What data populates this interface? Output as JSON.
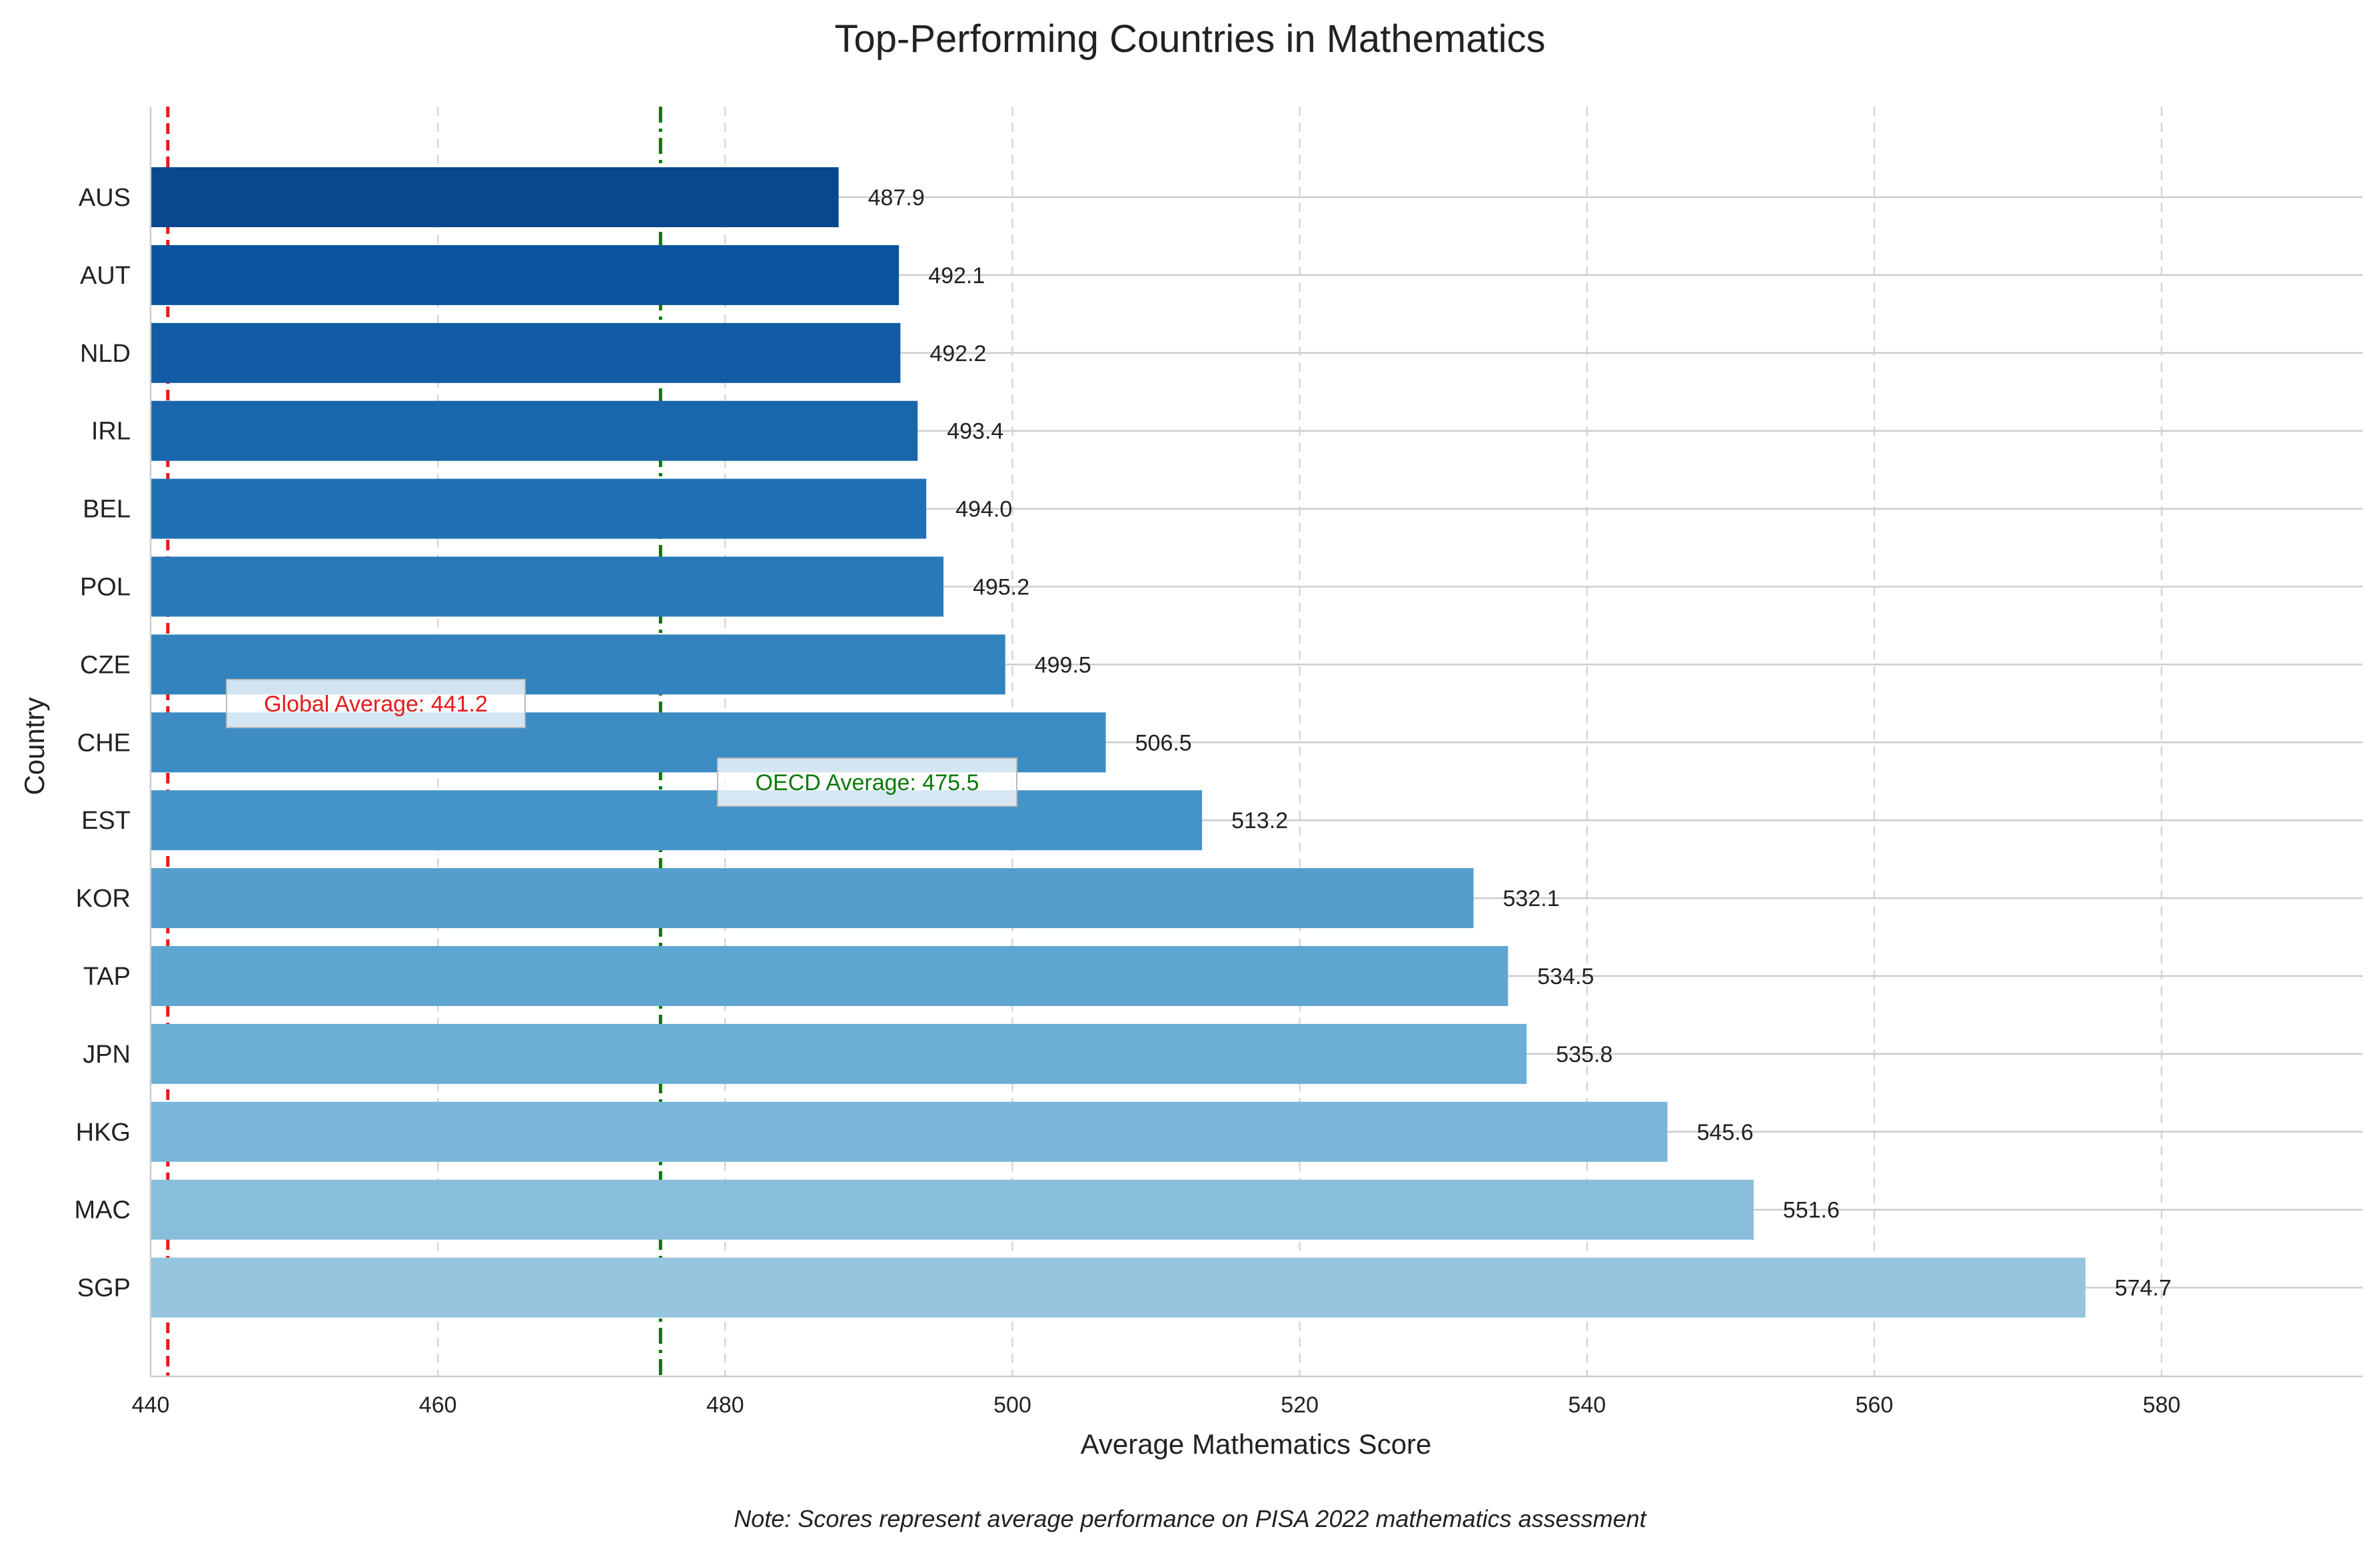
{
  "chart_data": {
    "type": "bar",
    "orientation": "horizontal",
    "title": "Top-Performing Countries in Mathematics",
    "xlabel": "Average Mathematics Score",
    "ylabel": "Country",
    "xlim": [
      440,
      594
    ],
    "xticks": [
      440,
      460,
      480,
      500,
      520,
      540,
      560,
      580
    ],
    "categories": [
      "AUS",
      "AUT",
      "NLD",
      "IRL",
      "BEL",
      "POL",
      "CZE",
      "CHE",
      "EST",
      "KOR",
      "TAP",
      "JPN",
      "HKG",
      "MAC",
      "SGP"
    ],
    "values": [
      487.9,
      492.1,
      492.2,
      493.4,
      494.0,
      495.2,
      499.5,
      506.5,
      513.2,
      532.1,
      534.5,
      535.8,
      545.6,
      551.6,
      574.7
    ],
    "value_labels": [
      "487.9",
      "492.1",
      "492.2",
      "493.4",
      "494.0",
      "495.2",
      "499.5",
      "506.5",
      "513.2",
      "532.1",
      "534.5",
      "535.8",
      "545.6",
      "551.6",
      "574.7"
    ],
    "bar_colors": [
      "#08488e",
      "#0a539e",
      "#115ca5",
      "#1966ad",
      "#2070b4",
      "#2a7ab9",
      "#3383be",
      "#3d8dc4",
      "#4594c7",
      "#539ecd",
      "#5fa6d1",
      "#6aaed6",
      "#7ab6d9",
      "#88beda",
      "#96c5e0"
    ],
    "reference_lines": [
      {
        "label": "Global Average: 441.2",
        "value": 441.2,
        "color": "#e41a1c",
        "style": "dashed"
      },
      {
        "label": "OECD Average: 475.5",
        "value": 475.5,
        "color": "#0a7a0a",
        "style": "dashdot"
      }
    ],
    "grid": true,
    "note": "Note: Scores represent average performance on PISA 2022 mathematics assessment"
  }
}
